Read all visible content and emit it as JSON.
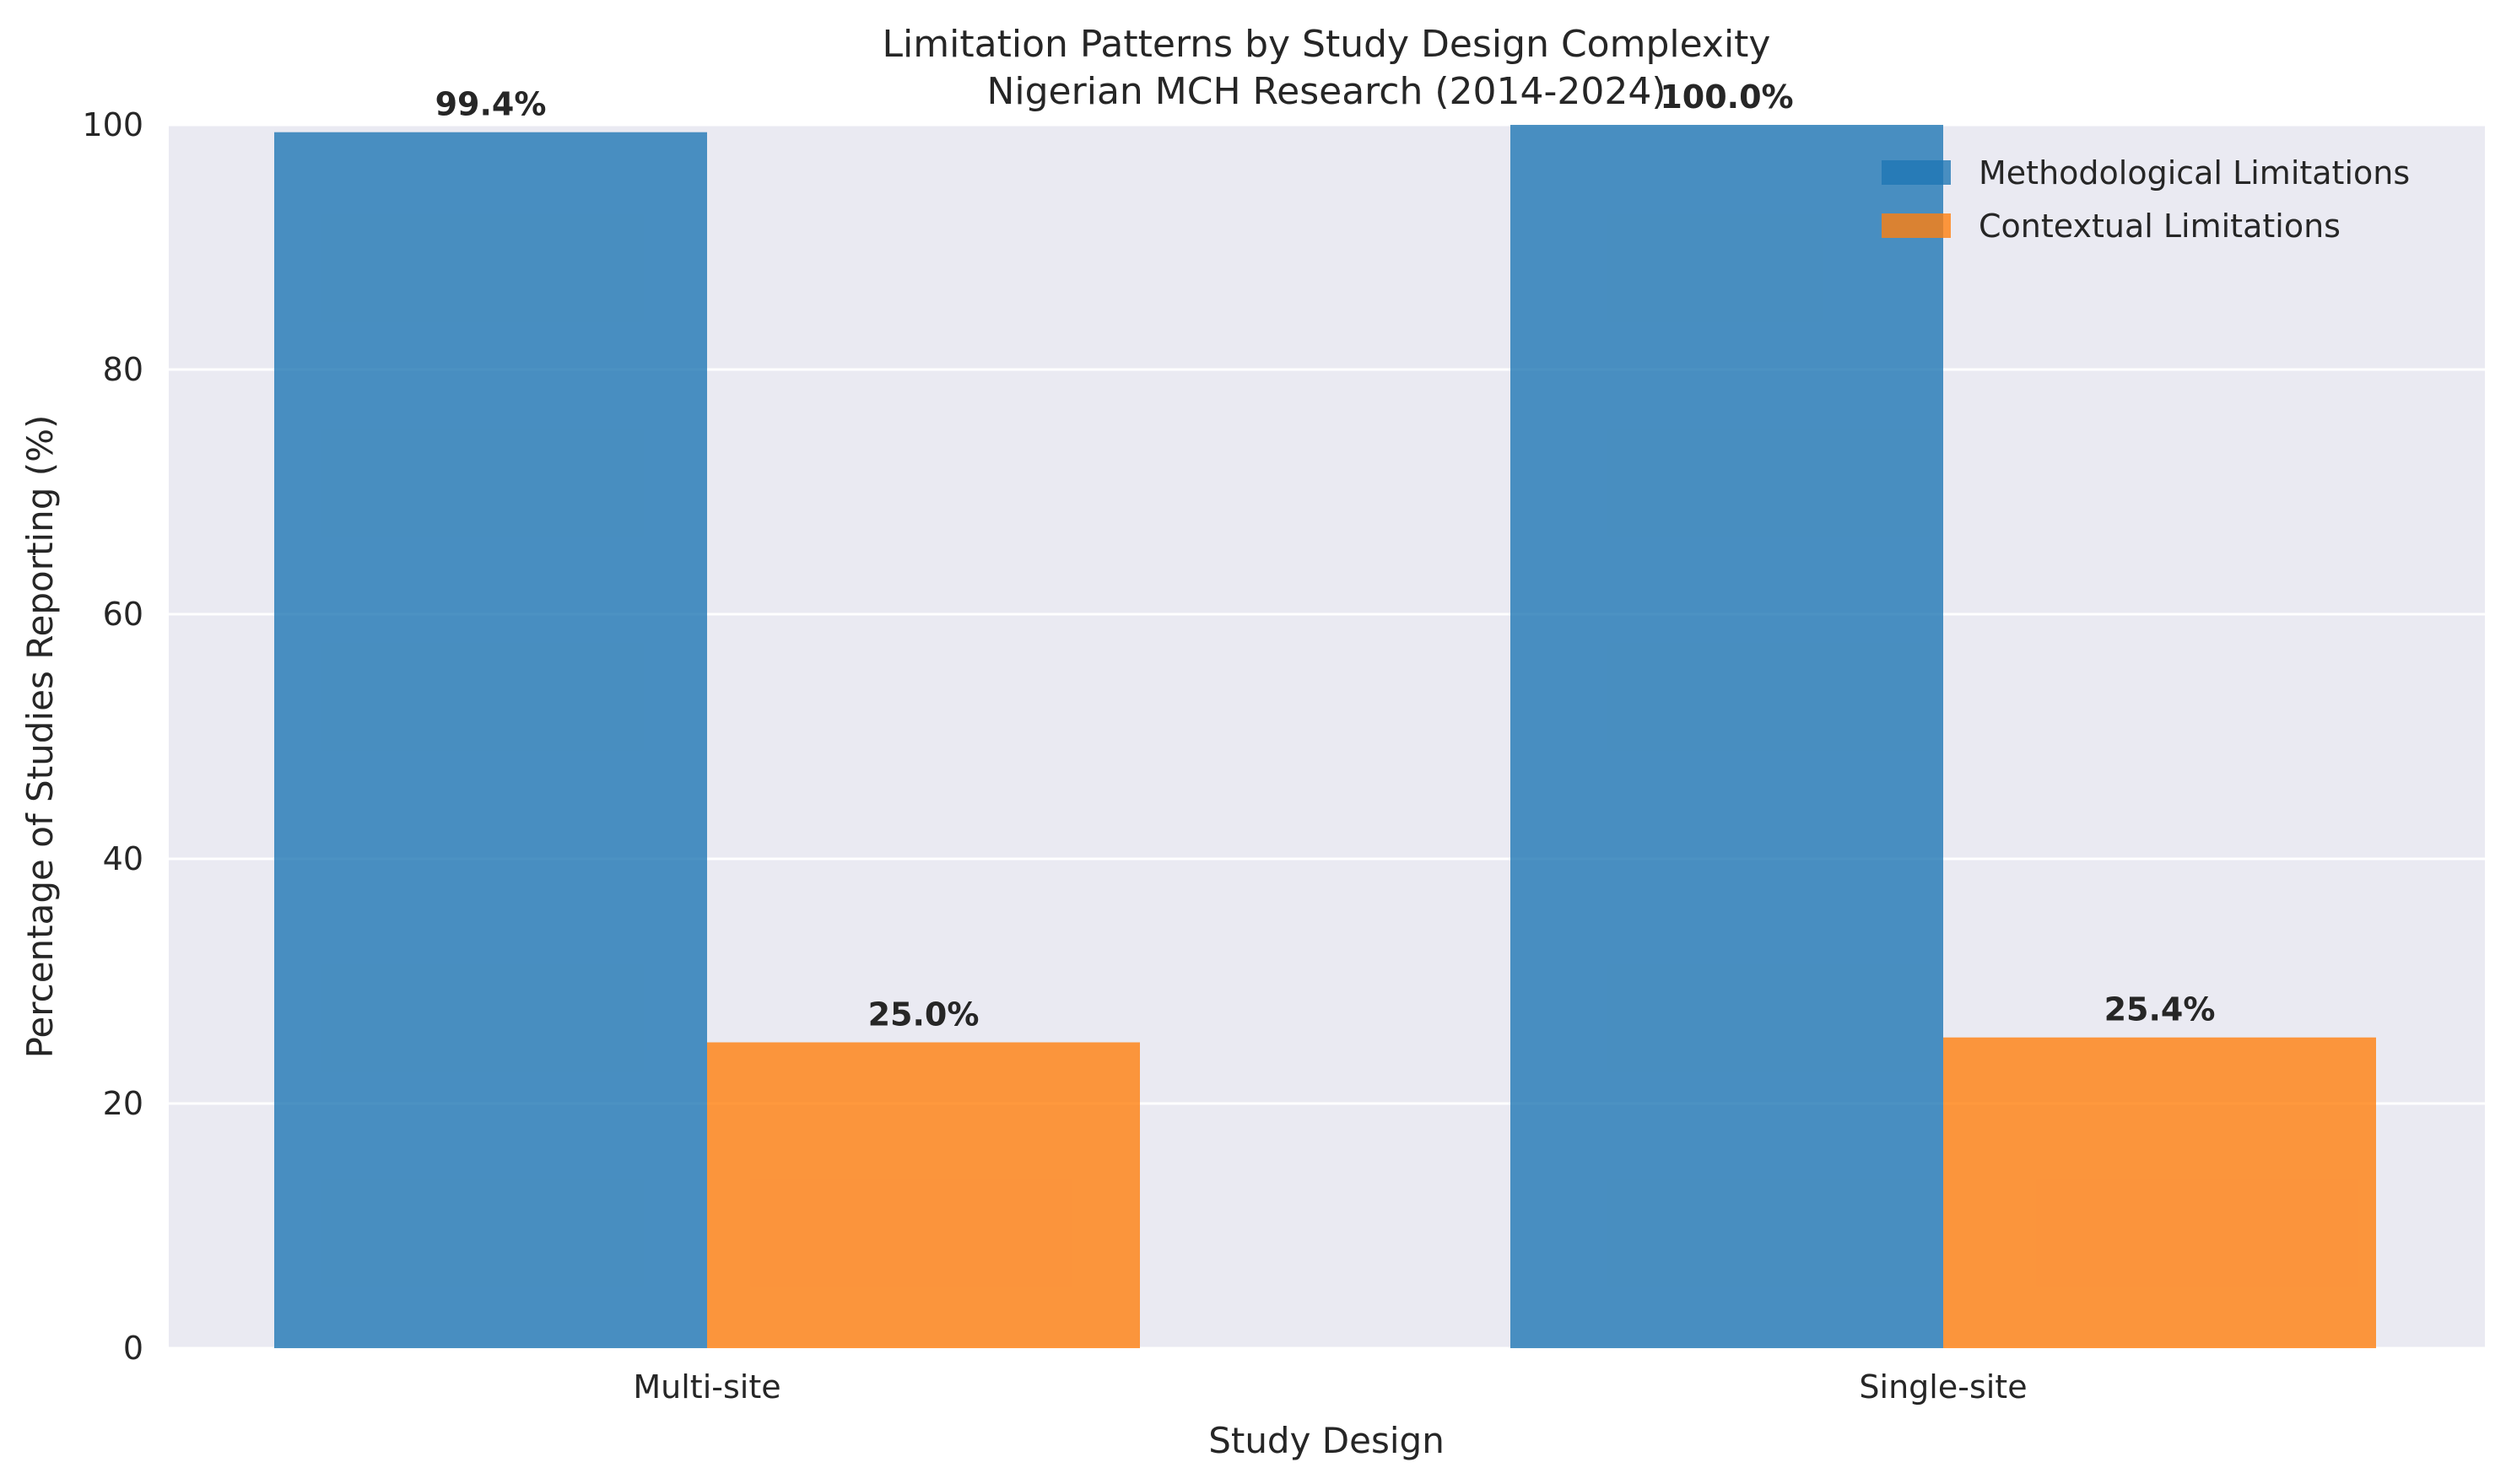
{
  "chart_data": {
    "type": "bar",
    "title": "Limitation Patterns by Study Design Complexity",
    "subtitle": "Nigerian MCH Research (2014-2024)",
    "xlabel": "Study Design",
    "ylabel": "Percentage of Studies Reporting (%)",
    "categories": [
      "Multi-site",
      "Single-site"
    ],
    "series": [
      {
        "name": "Methodological Limitations",
        "values": [
          99.4,
          100.0
        ],
        "labels": [
          "99.4%",
          "100.0%"
        ],
        "color": "#1f77b4"
      },
      {
        "name": "Contextual Limitations",
        "values": [
          25.0,
          25.4
        ],
        "labels": [
          "25.0%",
          "25.4%"
        ],
        "color": "#ff7f0e"
      }
    ],
    "ylim": [
      0,
      100
    ],
    "yticks": [
      "0",
      "20",
      "40",
      "60",
      "80",
      "100"
    ],
    "grid": true,
    "legend_position": "top-right",
    "background_color": "#eaeaf2"
  }
}
